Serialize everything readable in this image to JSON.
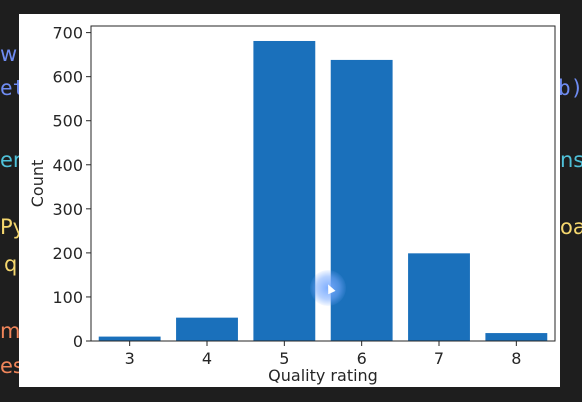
{
  "background_text": {
    "row1_left": "wi",
    "row2_left": "et",
    "row2_right": "b)",
    "row3_left": "er",
    "row3_right": "ns",
    "row4_left": "Py",
    "row4_right": "oa",
    "row5_left": "q",
    "row6_left": "m",
    "row7_left": "es"
  },
  "colors": {
    "bar": "#1a70bb",
    "axis": "#262626",
    "bg_blue": "#6f8cf2",
    "bg_teal": "#4fc1d9",
    "bg_yellow": "#f5d76e",
    "bg_orange": "#f0855a"
  },
  "chart_data": {
    "type": "bar",
    "categories": [
      "3",
      "4",
      "5",
      "6",
      "7",
      "8"
    ],
    "values": [
      10,
      53,
      681,
      638,
      199,
      18
    ],
    "title": "",
    "xlabel": "Quality rating",
    "ylabel": "Count",
    "ylim": [
      0,
      715
    ],
    "yticks": [
      0,
      100,
      200,
      300,
      400,
      500,
      600,
      700
    ],
    "grid": false,
    "legend": "none"
  }
}
